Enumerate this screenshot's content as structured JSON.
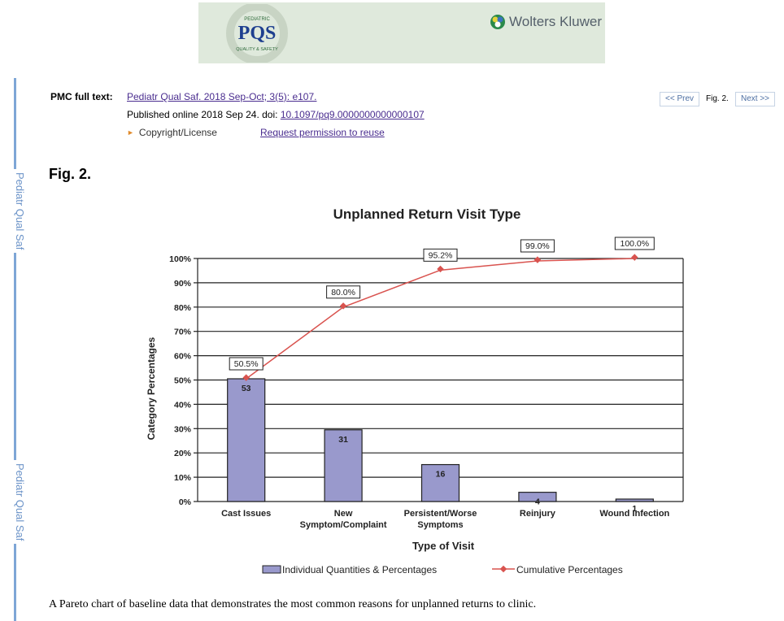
{
  "sidebar": {
    "journal_label": "Pediatr Qual Saf"
  },
  "banner": {
    "logo_text": "PQS",
    "logo_top": "PEDIATRIC",
    "logo_bottom": "QUALITY & SAFETY",
    "publisher": "Wolters Kluwer"
  },
  "meta": {
    "label": "PMC full text:",
    "citation": "Pediatr Qual Saf. 2018 Sep-Oct; 3(5): e107.",
    "published": "Published online 2018 Sep 24. doi: ",
    "doi": "10.1097/pq9.0000000000000107",
    "copyright": "Copyright/License",
    "request": "Request permission to reuse"
  },
  "nav": {
    "prev": "<< Prev",
    "fig": "Fig. 2.",
    "next": "Next >>"
  },
  "figure": {
    "heading": "Fig. 2.",
    "caption": "A Pareto chart of baseline data that demonstrates the most common reasons for unplanned returns to clinic."
  },
  "chart_data": {
    "type": "bar",
    "title": "Unplanned Return Visit Type",
    "xlabel": "Type of Visit",
    "ylabel": "Category Percentages",
    "ylim": [
      0,
      100
    ],
    "yticks": [
      "0%",
      "10%",
      "20%",
      "30%",
      "40%",
      "50%",
      "60%",
      "70%",
      "80%",
      "90%",
      "100%"
    ],
    "categories": [
      [
        "Cast Issues"
      ],
      [
        "New",
        "Symptom/Complaint"
      ],
      [
        "Persistent/Worse",
        "Symptoms"
      ],
      [
        "Reinjury"
      ],
      [
        "Wound Infection"
      ]
    ],
    "series": [
      {
        "name": "Individual Quantities & Percentages",
        "type": "bar",
        "counts": [
          53,
          31,
          16,
          4,
          1
        ],
        "values": [
          50.5,
          29.5,
          15.2,
          3.8,
          1.0
        ],
        "color": "#9999cc"
      },
      {
        "name": "Cumulative Percentages",
        "type": "line",
        "values": [
          50.5,
          80.0,
          95.2,
          99.0,
          100.0
        ],
        "labels": [
          "50.5%",
          "80.0%",
          "95.2%",
          "99.0%",
          "100.0%"
        ],
        "color": "#d9534f"
      }
    ],
    "grid": true,
    "legend": "bottom"
  }
}
